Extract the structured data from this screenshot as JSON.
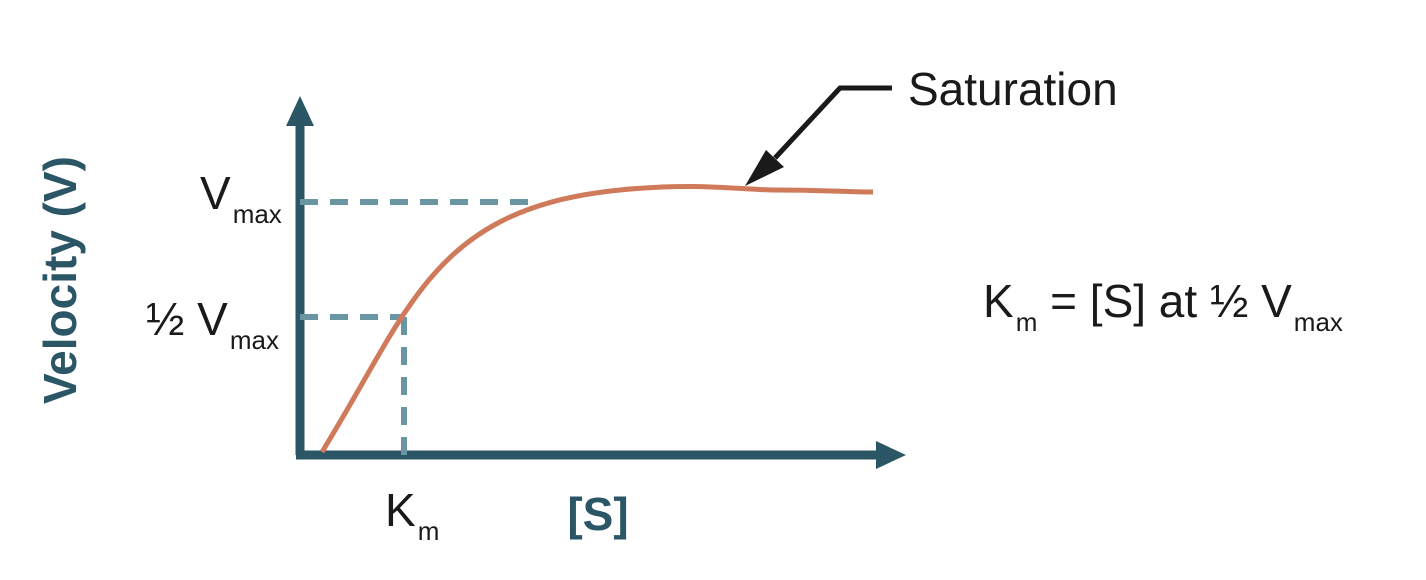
{
  "labels": {
    "y_axis_title": "Velocity (V)",
    "x_axis_title": "[S]",
    "vmax": {
      "main": "V",
      "sub": "max"
    },
    "half_vmax": {
      "main": "½ V",
      "sub": "max"
    },
    "km": {
      "main": "K",
      "sub": "m"
    },
    "saturation": "Saturation",
    "equation": {
      "k": "K",
      "k_sub": "m",
      "middle": " = [S] at ½ V",
      "v_sub": "max"
    }
  },
  "colors": {
    "axis": "#2b5666",
    "curve": "#d07a5c",
    "guide": "#6a95a3",
    "arrow": "#1a1a1a"
  }
}
